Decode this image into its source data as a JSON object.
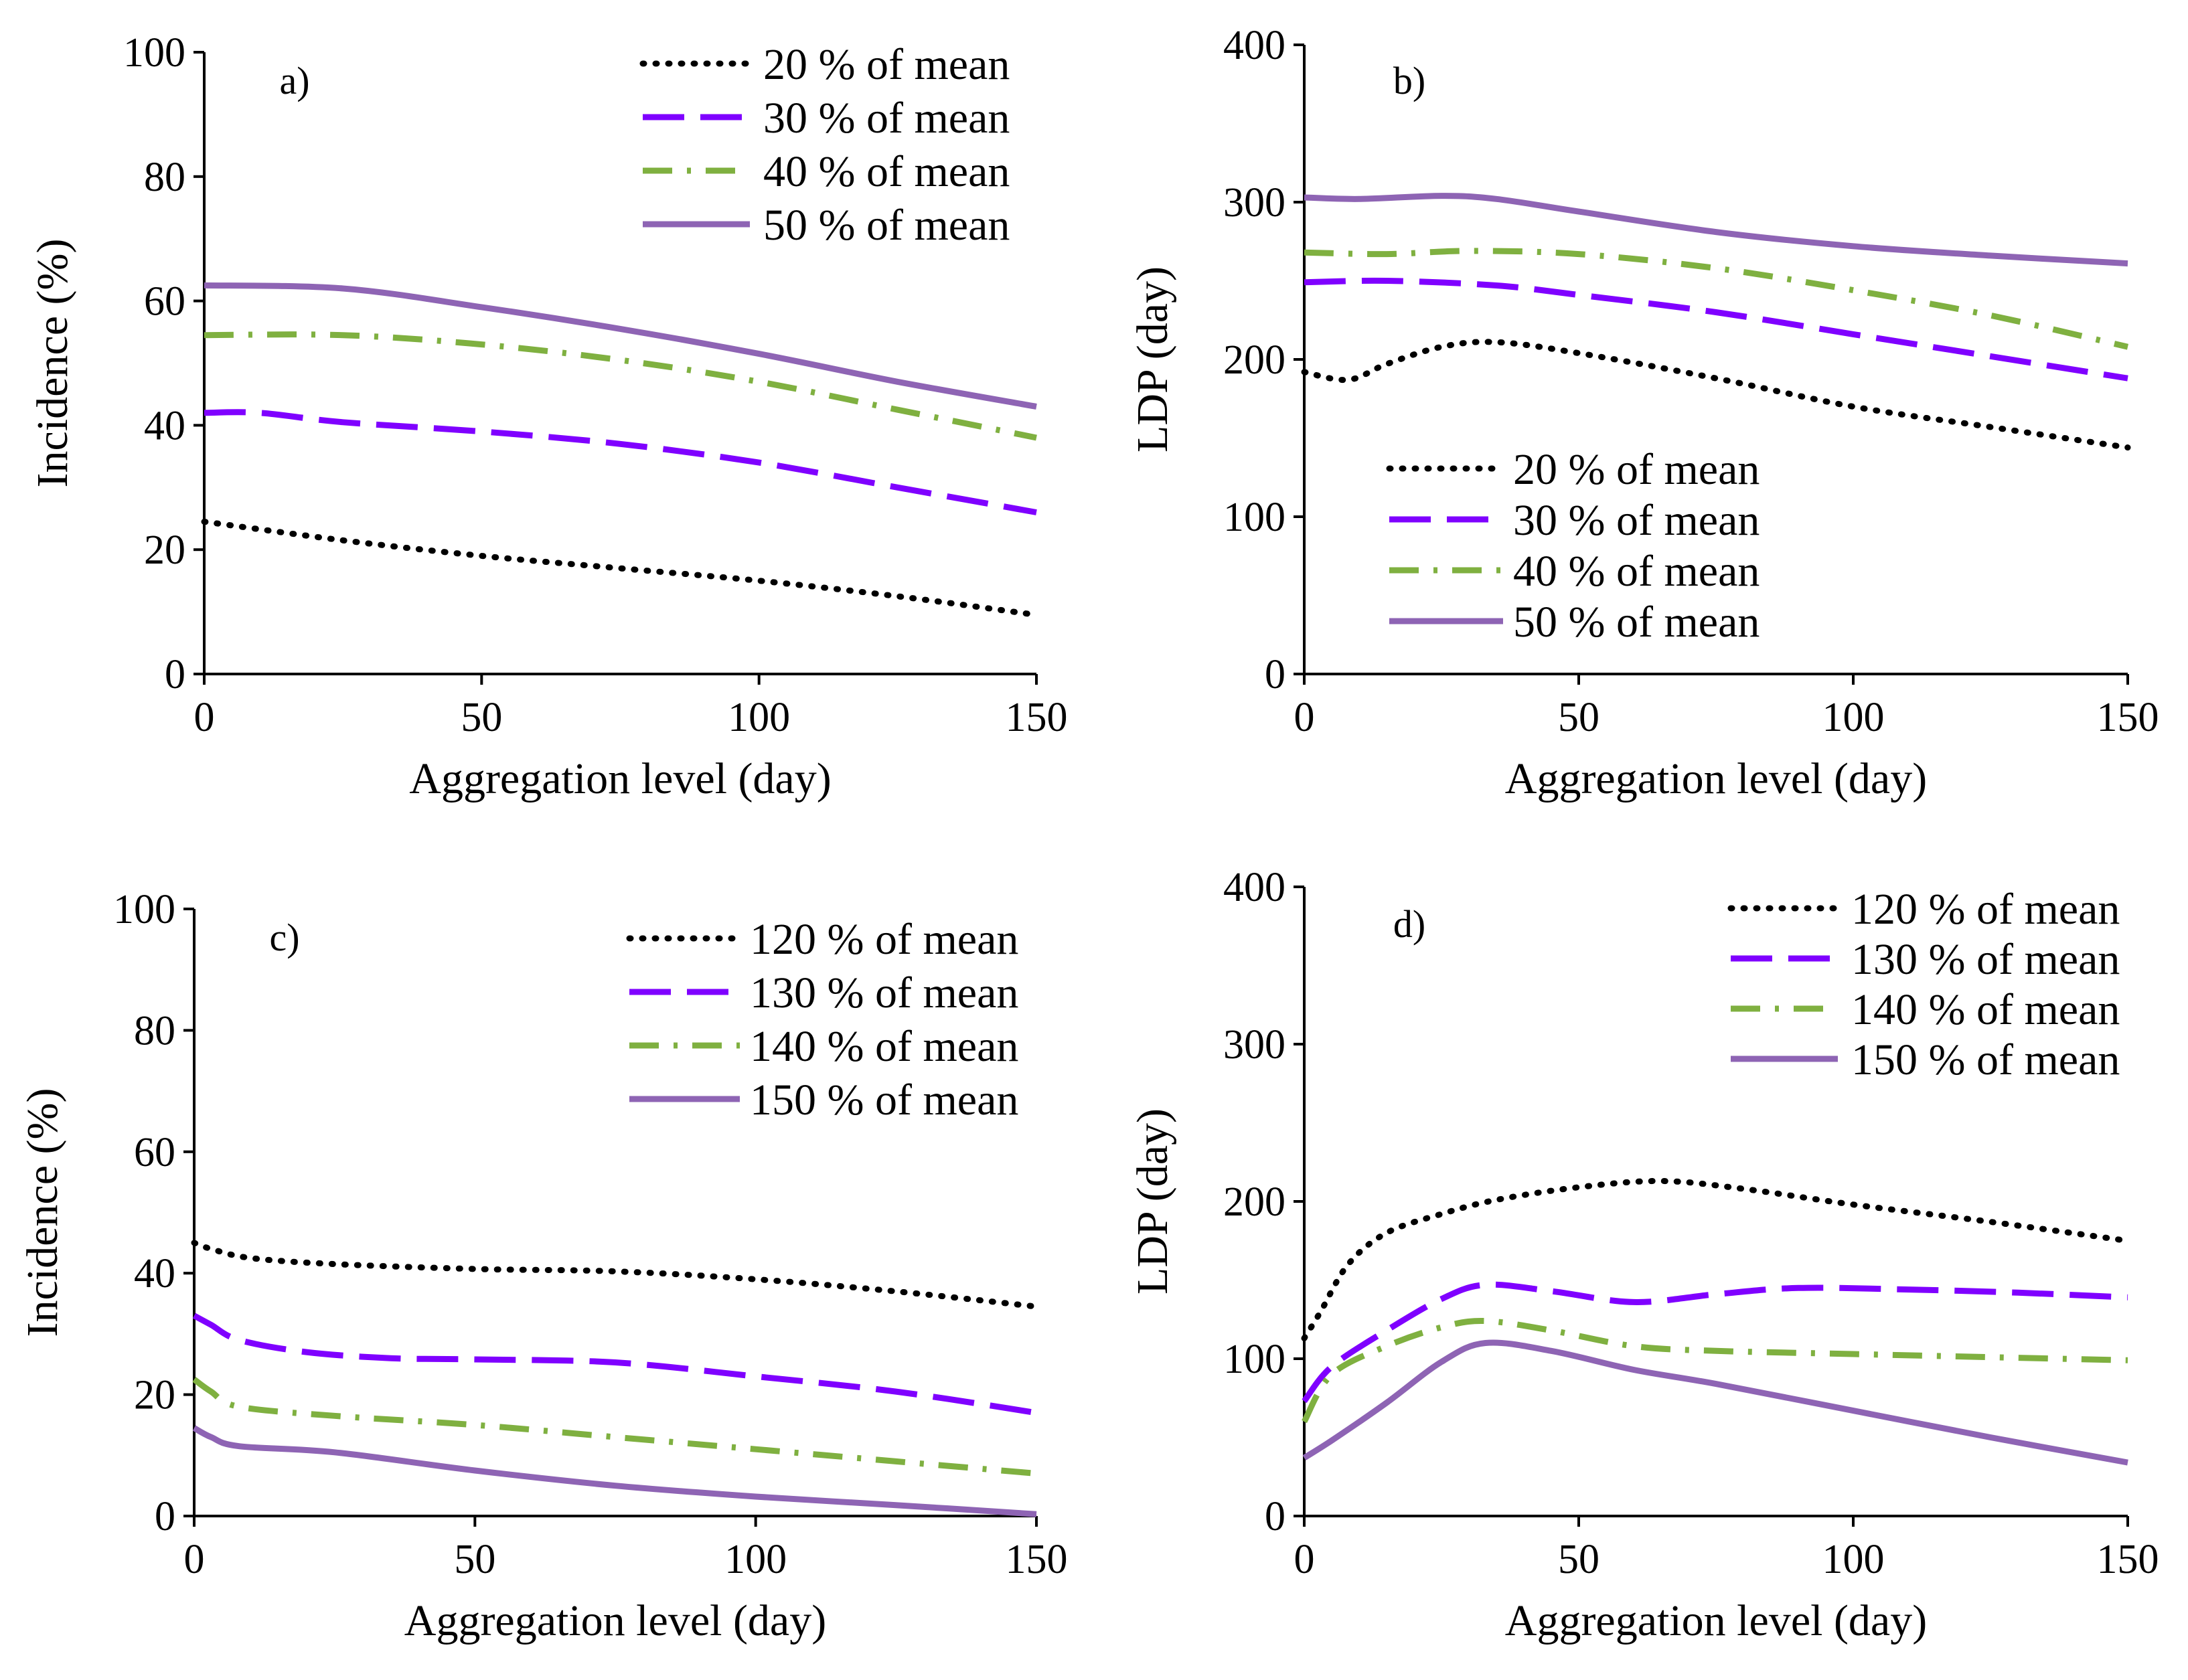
{
  "figure": {
    "chart_data": [
      {
        "type": "line",
        "panel_label": "a)",
        "xlabel": "Aggregation level (day)",
        "ylabel": "Incidence (%)",
        "xlim": [
          0,
          150
        ],
        "ylim": [
          0,
          100
        ],
        "xticks": [
          "0",
          "50",
          "100",
          "150"
        ],
        "yticks": [
          "0",
          "20",
          "40",
          "60",
          "80",
          "100"
        ],
        "legend_position": "top-right",
        "series": [
          {
            "name": "20 % of mean",
            "style": "dotted",
            "color": "#000000",
            "x": [
              0,
              25,
              50,
              75,
              100,
              125,
              150
            ],
            "y": [
              24.5,
              21.5,
              19,
              17,
              15,
              12.5,
              9.5
            ]
          },
          {
            "name": "30 % of mean",
            "style": "dashed",
            "color": "#7F00FF",
            "x": [
              0,
              10,
              25,
              50,
              75,
              100,
              125,
              150
            ],
            "y": [
              42,
              42,
              40.5,
              39,
              37,
              34,
              30,
              26
            ]
          },
          {
            "name": "40 % of mean",
            "style": "dashdot",
            "color": "#7FB040",
            "x": [
              0,
              25,
              50,
              75,
              100,
              125,
              150
            ],
            "y": [
              54.5,
              54.5,
              53,
              50.5,
              47,
              42.5,
              38
            ]
          },
          {
            "name": "50 % of mean",
            "style": "solid",
            "color": "#8E64B4",
            "x": [
              0,
              25,
              50,
              75,
              100,
              125,
              150
            ],
            "y": [
              62.5,
              62,
              59,
              55.5,
              51.5,
              47,
              43
            ]
          }
        ]
      },
      {
        "type": "line",
        "panel_label": "b)",
        "xlabel": "Aggregation level (day)",
        "ylabel": "LDP (day)",
        "xlim": [
          0,
          150
        ],
        "ylim": [
          0,
          400
        ],
        "xticks": [
          "0",
          "50",
          "100",
          "150"
        ],
        "yticks": [
          "0",
          "100",
          "200",
          "300",
          "400"
        ],
        "legend_position": "center-right",
        "series": [
          {
            "name": "20 % of mean",
            "style": "dotted",
            "color": "#000000",
            "x": [
              0,
              8,
              15,
              25,
              35,
              50,
              75,
              100,
              125,
              150
            ],
            "y": [
              192,
              187,
              197,
              208,
              211,
              204,
              188,
              170,
              157,
              144
            ]
          },
          {
            "name": "30 % of mean",
            "style": "dashed",
            "color": "#7F00FF",
            "x": [
              0,
              15,
              35,
              50,
              75,
              100,
              125,
              150
            ],
            "y": [
              249,
              250,
              247,
              241,
              230,
              216,
              202,
              188
            ]
          },
          {
            "name": "40 % of mean",
            "style": "dashdot",
            "color": "#7FB040",
            "x": [
              0,
              15,
              30,
              50,
              75,
              100,
              125,
              150
            ],
            "y": [
              268,
              267,
              269,
              267,
              258,
              244,
              228,
              208
            ]
          },
          {
            "name": "50 % of mean",
            "style": "solid",
            "color": "#8E64B4",
            "x": [
              0,
              10,
              25,
              35,
              50,
              75,
              100,
              125,
              150
            ],
            "y": [
              303,
              302,
              304,
              302,
              294,
              281,
              272,
              266,
              261
            ]
          }
        ]
      },
      {
        "type": "line",
        "panel_label": "c)",
        "xlabel": "Aggregation level (day)",
        "ylabel": "Incidence (%)",
        "xlim": [
          0,
          150
        ],
        "ylim": [
          0,
          100
        ],
        "xticks": [
          "0",
          "50",
          "100",
          "150"
        ],
        "yticks": [
          "0",
          "20",
          "40",
          "60",
          "80",
          "100"
        ],
        "legend_position": "top-right",
        "series": [
          {
            "name": "120 % of mean",
            "style": "dotted",
            "color": "#000000",
            "x": [
              0,
              3,
              10,
              25,
              50,
              75,
              100,
              125,
              150
            ],
            "y": [
              45,
              44,
              42.5,
              41.5,
              40.7,
              40.3,
              39,
              37,
              34.5
            ]
          },
          {
            "name": "130 % of mean",
            "style": "dashed",
            "color": "#7F00FF",
            "x": [
              0,
              3,
              8,
              20,
              35,
              50,
              75,
              100,
              125,
              150
            ],
            "y": [
              33,
              31.5,
              29,
              27,
              26,
              25.8,
              25.3,
              23,
              20.5,
              17
            ]
          },
          {
            "name": "140 % of mean",
            "style": "dashdot",
            "color": "#7FB040",
            "x": [
              0,
              3,
              8,
              25,
              50,
              75,
              100,
              125,
              150
            ],
            "y": [
              22.5,
              20.5,
              18,
              16.5,
              15,
              13,
              11,
              9,
              7
            ]
          },
          {
            "name": "150 % of mean",
            "style": "solid",
            "color": "#8E64B4",
            "x": [
              0,
              3,
              8,
              25,
              50,
              75,
              100,
              125,
              150
            ],
            "y": [
              14.5,
              13,
              11.5,
              10.5,
              7.5,
              5,
              3.2,
              1.8,
              0.3
            ]
          }
        ]
      },
      {
        "type": "line",
        "panel_label": "d)",
        "xlabel": "Aggregation level (day)",
        "ylabel": "LDP (day)",
        "xlim": [
          0,
          150
        ],
        "ylim": [
          0,
          400
        ],
        "xticks": [
          "0",
          "50",
          "100",
          "150"
        ],
        "yticks": [
          "0",
          "100",
          "200",
          "300",
          "400"
        ],
        "legend_position": "top-right",
        "series": [
          {
            "name": "120 % of mean",
            "style": "dotted",
            "color": "#000000",
            "x": [
              0,
              3,
              8,
              15,
              25,
              35,
              50,
              65,
              80,
              100,
              125,
              150
            ],
            "y": [
              113,
              130,
              160,
              180,
              192,
              201,
              209,
              213,
              208,
              198,
              187,
              175
            ]
          },
          {
            "name": "130 % of mean",
            "style": "dashed",
            "color": "#7F00FF",
            "x": [
              0,
              5,
              15,
              25,
              33,
              45,
              60,
              75,
              90,
              110,
              130,
              150
            ],
            "y": [
              73,
              95,
              118,
              138,
              147,
              143,
              136,
              141,
              145,
              144,
              142,
              139
            ]
          },
          {
            "name": "140 % of mean",
            "style": "dashdot",
            "color": "#7FB040",
            "x": [
              0,
              5,
              15,
              25,
              33,
              45,
              60,
              75,
              100,
              125,
              150
            ],
            "y": [
              60,
              90,
              108,
              120,
              124,
              118,
              108,
              105,
              103,
              101,
              99
            ]
          },
          {
            "name": "150 % of mean",
            "style": "solid",
            "color": "#8E64B4",
            "x": [
              0,
              5,
              15,
              25,
              33,
              45,
              60,
              75,
              100,
              125,
              150
            ],
            "y": [
              37,
              48,
              72,
              98,
              110,
              105,
              93,
              84,
              67,
              50,
              34
            ]
          }
        ]
      }
    ]
  }
}
